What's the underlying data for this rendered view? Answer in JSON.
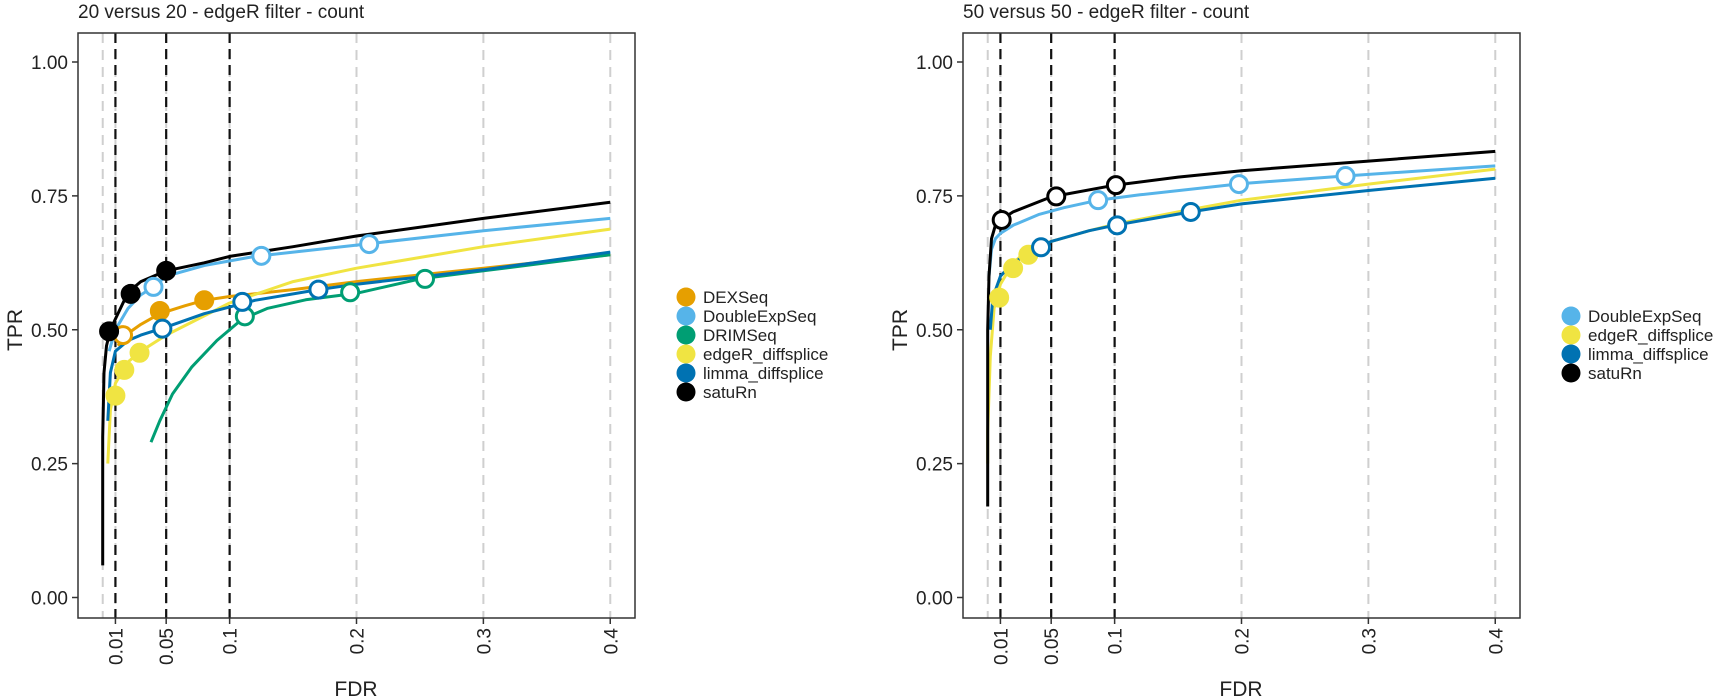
{
  "chart_data": [
    {
      "type": "line",
      "title": "20 versus 20 - edgeR filter - count",
      "xlabel": "FDR",
      "ylabel": "TPR",
      "x_ticks": [
        0.01,
        0.05,
        0.1,
        0.2,
        0.3,
        0.4
      ],
      "x_tick_labels": [
        "0.01",
        "0.05",
        "0.1",
        "0.2",
        "0.3",
        "0.4"
      ],
      "y_ticks": [
        0,
        0.25,
        0.5,
        0.75,
        1
      ],
      "y_tick_labels": [
        "0.00",
        "0.25",
        "0.50",
        "0.75",
        "1.00"
      ],
      "xlim": [
        0,
        0.4
      ],
      "ylim": [
        0,
        1
      ],
      "threshold_lines": [
        0.01,
        0.05,
        0.1
      ],
      "legend_position": "right",
      "series": [
        {
          "name": "DEXSeq",
          "color": "#E69F00",
          "x": [
            0.012,
            0.018,
            0.03,
            0.045,
            0.065,
            0.08,
            0.1,
            0.15,
            0.2,
            0.3,
            0.4
          ],
          "y": [
            0.47,
            0.49,
            0.51,
            0.53,
            0.545,
            0.555,
            0.562,
            0.575,
            0.59,
            0.615,
            0.64
          ],
          "points": [
            {
              "x": 0.016,
              "y": 0.49,
              "filled": false
            },
            {
              "x": 0.045,
              "y": 0.535,
              "filled": true
            },
            {
              "x": 0.08,
              "y": 0.555,
              "filled": true
            }
          ]
        },
        {
          "name": "DoubleExpSeq",
          "color": "#56B4E9",
          "x": [
            0.005,
            0.01,
            0.02,
            0.03,
            0.04,
            0.05,
            0.08,
            0.12,
            0.2,
            0.3,
            0.4
          ],
          "y": [
            0.46,
            0.5,
            0.54,
            0.565,
            0.58,
            0.6,
            0.62,
            0.637,
            0.658,
            0.685,
            0.708
          ],
          "points": [
            {
              "x": 0.04,
              "y": 0.58,
              "filled": false
            },
            {
              "x": 0.125,
              "y": 0.638,
              "filled": false
            },
            {
              "x": 0.21,
              "y": 0.66,
              "filled": false
            }
          ]
        },
        {
          "name": "DRIMSeq",
          "color": "#009E73",
          "x": [
            0.038,
            0.045,
            0.055,
            0.07,
            0.09,
            0.11,
            0.13,
            0.16,
            0.2,
            0.25,
            0.3,
            0.35,
            0.4
          ],
          "y": [
            0.29,
            0.33,
            0.38,
            0.43,
            0.48,
            0.52,
            0.54,
            0.556,
            0.568,
            0.595,
            0.61,
            0.625,
            0.64
          ],
          "points": [
            {
              "x": 0.112,
              "y": 0.525,
              "filled": false
            },
            {
              "x": 0.195,
              "y": 0.57,
              "filled": false
            },
            {
              "x": 0.254,
              "y": 0.595,
              "filled": false
            }
          ]
        },
        {
          "name": "edgeR_diffsplice",
          "color": "#F0E442",
          "x": [
            0.004,
            0.006,
            0.01,
            0.02,
            0.03,
            0.05,
            0.1,
            0.15,
            0.2,
            0.3,
            0.4
          ],
          "y": [
            0.25,
            0.35,
            0.4,
            0.44,
            0.46,
            0.49,
            0.55,
            0.59,
            0.615,
            0.655,
            0.688
          ],
          "points": [
            {
              "x": 0.01,
              "y": 0.377,
              "filled": true
            },
            {
              "x": 0.017,
              "y": 0.425,
              "filled": true
            },
            {
              "x": 0.029,
              "y": 0.457,
              "filled": true
            }
          ]
        },
        {
          "name": "limma_diffsplice",
          "color": "#0072B2",
          "x": [
            0.004,
            0.006,
            0.01,
            0.02,
            0.03,
            0.05,
            0.08,
            0.12,
            0.17,
            0.2,
            0.3,
            0.4
          ],
          "y": [
            0.33,
            0.42,
            0.46,
            0.48,
            0.49,
            0.505,
            0.53,
            0.555,
            0.575,
            0.585,
            0.612,
            0.645
          ],
          "points": [
            {
              "x": 0.047,
              "y": 0.502,
              "filled": false
            },
            {
              "x": 0.11,
              "y": 0.552,
              "filled": false
            },
            {
              "x": 0.17,
              "y": 0.575,
              "filled": false
            }
          ]
        },
        {
          "name": "satuRn",
          "color": "#000000",
          "x": [
            0.0,
            0.0,
            0.001,
            0.003,
            0.006,
            0.01,
            0.02,
            0.03,
            0.05,
            0.08,
            0.1,
            0.15,
            0.2,
            0.3,
            0.4
          ],
          "y": [
            0.06,
            0.3,
            0.42,
            0.47,
            0.5,
            0.52,
            0.57,
            0.59,
            0.61,
            0.625,
            0.637,
            0.655,
            0.675,
            0.708,
            0.738
          ],
          "points": [
            {
              "x": 0.005,
              "y": 0.497,
              "filled": true
            },
            {
              "x": 0.022,
              "y": 0.567,
              "filled": true
            },
            {
              "x": 0.05,
              "y": 0.61,
              "filled": true
            }
          ]
        }
      ]
    },
    {
      "type": "line",
      "title": "50 versus 50 - edgeR filter - count",
      "xlabel": "FDR",
      "ylabel": "TPR",
      "x_ticks": [
        0.01,
        0.05,
        0.1,
        0.2,
        0.3,
        0.4
      ],
      "x_tick_labels": [
        "0.01",
        "0.05",
        "0.1",
        "0.2",
        "0.3",
        "0.4"
      ],
      "y_ticks": [
        0,
        0.25,
        0.5,
        0.75,
        1
      ],
      "y_tick_labels": [
        "0.00",
        "0.25",
        "0.50",
        "0.75",
        "1.00"
      ],
      "xlim": [
        0,
        0.4
      ],
      "ylim": [
        0,
        1
      ],
      "threshold_lines": [
        0.01,
        0.05,
        0.1
      ],
      "legend_position": "right",
      "series": [
        {
          "name": "DoubleExpSeq",
          "color": "#56B4E9",
          "x": [
            0.001,
            0.003,
            0.006,
            0.01,
            0.02,
            0.04,
            0.06,
            0.087,
            0.12,
            0.2,
            0.28,
            0.4
          ],
          "y": [
            0.6,
            0.65,
            0.67,
            0.68,
            0.695,
            0.715,
            0.728,
            0.742,
            0.752,
            0.773,
            0.787,
            0.806
          ],
          "points": [
            {
              "x": 0.087,
              "y": 0.742,
              "filled": false
            },
            {
              "x": 0.198,
              "y": 0.772,
              "filled": false
            },
            {
              "x": 0.282,
              "y": 0.787,
              "filled": false
            }
          ]
        },
        {
          "name": "edgeR_diffsplice",
          "color": "#F0E442",
          "x": [
            0.0,
            0.0,
            0.002,
            0.005,
            0.01,
            0.02,
            0.03,
            0.05,
            0.08,
            0.1,
            0.15,
            0.2,
            0.3,
            0.4
          ],
          "y": [
            0.25,
            0.31,
            0.45,
            0.54,
            0.585,
            0.625,
            0.645,
            0.665,
            0.685,
            0.697,
            0.72,
            0.742,
            0.772,
            0.8
          ],
          "points": [
            {
              "x": 0.009,
              "y": 0.56,
              "filled": true
            },
            {
              "x": 0.02,
              "y": 0.615,
              "filled": true
            },
            {
              "x": 0.032,
              "y": 0.64,
              "filled": true
            }
          ]
        },
        {
          "name": "limma_diffsplice",
          "color": "#0072B2",
          "x": [
            0.002,
            0.004,
            0.01,
            0.02,
            0.035,
            0.05,
            0.08,
            0.1,
            0.16,
            0.2,
            0.3,
            0.4
          ],
          "y": [
            0.5,
            0.56,
            0.6,
            0.625,
            0.645,
            0.665,
            0.685,
            0.695,
            0.72,
            0.735,
            0.76,
            0.783
          ],
          "points": [
            {
              "x": 0.042,
              "y": 0.654,
              "filled": false
            },
            {
              "x": 0.102,
              "y": 0.695,
              "filled": false
            },
            {
              "x": 0.16,
              "y": 0.72,
              "filled": false
            }
          ]
        },
        {
          "name": "satuRn",
          "color": "#000000",
          "x": [
            0.0,
            0.0,
            0.001,
            0.003,
            0.006,
            0.01,
            0.02,
            0.05,
            0.1,
            0.15,
            0.2,
            0.3,
            0.4
          ],
          "y": [
            0.17,
            0.5,
            0.6,
            0.67,
            0.695,
            0.705,
            0.72,
            0.748,
            0.77,
            0.785,
            0.797,
            0.815,
            0.833
          ],
          "points": [
            {
              "x": 0.011,
              "y": 0.705,
              "filled": false
            },
            {
              "x": 0.054,
              "y": 0.749,
              "filled": false
            },
            {
              "x": 0.101,
              "y": 0.77,
              "filled": false
            }
          ]
        }
      ]
    }
  ]
}
